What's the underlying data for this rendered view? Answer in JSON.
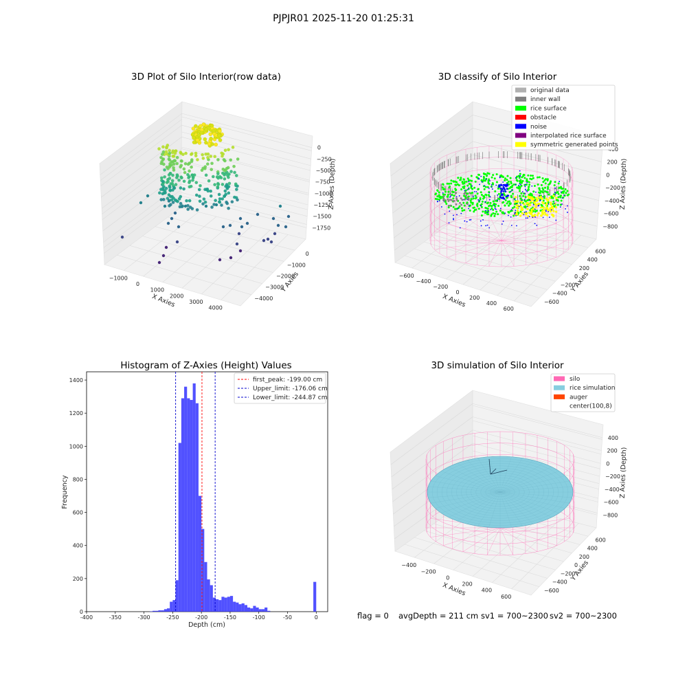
{
  "suptitle": "PJPJR01 2025-11-20 01:25:31",
  "colors": {
    "hist_bar": "#3333ff",
    "first_peak": "#ff0000",
    "limits": "#0000cc",
    "silo": "#ff69b4",
    "rice_sim": "#87cedf",
    "auger": "#ff4500",
    "rice_surface": "#00ff00",
    "noise": "#0000ff",
    "symmetric": "#ffff00",
    "inner_wall": "#808080",
    "original": "#b0b0b0",
    "obstacle": "#ff0000",
    "interpolated": "#800080"
  },
  "chart_data": [
    {
      "type": "scatter",
      "title": "3D Plot of Silo Interior(row data)",
      "xlabel": "X Axies",
      "ylabel": "Y Axies",
      "zlabel": "Z Axies (Depth)",
      "xticks": [
        "−1000",
        "0",
        "1000",
        "2000",
        "3000",
        "4000"
      ],
      "yticks": [
        "−4000",
        "−3000",
        "−2000",
        "−1000",
        "0"
      ],
      "zticks": [
        "0",
        "−250",
        "−500",
        "−750",
        "−1000",
        "−1250",
        "−1500",
        "−1750"
      ],
      "colormap": "viridis"
    },
    {
      "type": "scatter",
      "title": "3D classify of Silo Interior",
      "xlabel": "X Axies",
      "ylabel": "Y Axies",
      "zlabel": "Z Axies (Depth)",
      "xticks": [
        "−600",
        "−400",
        "−200",
        "0",
        "200",
        "400",
        "600"
      ],
      "yticks": [
        "−600",
        "−400",
        "−200",
        "0",
        "200",
        "400",
        "600"
      ],
      "zticks": [
        "400",
        "200",
        "0",
        "−200",
        "−400",
        "−600",
        "−800"
      ],
      "legend": [
        {
          "label": "original data",
          "color": "#b0b0b0"
        },
        {
          "label": "inner wall",
          "color": "#808080"
        },
        {
          "label": "rice surface",
          "color": "#00ff00"
        },
        {
          "label": "obstacle",
          "color": "#ff0000"
        },
        {
          "label": "noise",
          "color": "#0000ff"
        },
        {
          "label": "interpolated rice surface",
          "color": "#800080"
        },
        {
          "label": "symmetric generated points",
          "color": "#ffff00"
        }
      ]
    },
    {
      "type": "bar",
      "title": "Histogram of Z-Axies (Height) Values",
      "xlabel": "Depth (cm)",
      "ylabel": "Frequency",
      "xlim": [
        -400,
        20
      ],
      "ylim": [
        0,
        1450
      ],
      "bin_width": 5,
      "xticks": [
        -400,
        -350,
        -300,
        -250,
        -200,
        -150,
        -100,
        -50,
        0
      ],
      "yticks": [
        0,
        200,
        400,
        600,
        800,
        1000,
        1200,
        1400
      ],
      "bins": [
        {
          "x": -290,
          "v": 2
        },
        {
          "x": -285,
          "v": 5
        },
        {
          "x": -280,
          "v": 5
        },
        {
          "x": -275,
          "v": 8
        },
        {
          "x": -270,
          "v": 8
        },
        {
          "x": -265,
          "v": 15
        },
        {
          "x": -260,
          "v": 20
        },
        {
          "x": -255,
          "v": 60
        },
        {
          "x": -250,
          "v": 70
        },
        {
          "x": -245,
          "v": 190
        },
        {
          "x": -240,
          "v": 1020
        },
        {
          "x": -235,
          "v": 1290
        },
        {
          "x": -230,
          "v": 1360
        },
        {
          "x": -225,
          "v": 1290
        },
        {
          "x": -220,
          "v": 1280
        },
        {
          "x": -215,
          "v": 1380
        },
        {
          "x": -210,
          "v": 1260
        },
        {
          "x": -205,
          "v": 700
        },
        {
          "x": -200,
          "v": 500
        },
        {
          "x": -195,
          "v": 300
        },
        {
          "x": -190,
          "v": 195
        },
        {
          "x": -185,
          "v": 160
        },
        {
          "x": -180,
          "v": 85
        },
        {
          "x": -175,
          "v": 75
        },
        {
          "x": -170,
          "v": 70
        },
        {
          "x": -165,
          "v": 90
        },
        {
          "x": -160,
          "v": 85
        },
        {
          "x": -155,
          "v": 90
        },
        {
          "x": -150,
          "v": 95
        },
        {
          "x": -145,
          "v": 60
        },
        {
          "x": -140,
          "v": 55
        },
        {
          "x": -135,
          "v": 45
        },
        {
          "x": -130,
          "v": 50
        },
        {
          "x": -125,
          "v": 40
        },
        {
          "x": -120,
          "v": 25
        },
        {
          "x": -115,
          "v": 20
        },
        {
          "x": -110,
          "v": 35
        },
        {
          "x": -105,
          "v": 25
        },
        {
          "x": -100,
          "v": 15
        },
        {
          "x": -95,
          "v": 15
        },
        {
          "x": -90,
          "v": 25
        },
        {
          "x": -85,
          "v": 5
        },
        {
          "x": -5,
          "v": 180
        }
      ],
      "vlines": [
        {
          "label": "first_peak: -199.00 cm",
          "x": -199.0,
          "color": "#ff0000"
        },
        {
          "label": "Upper_limit: -176.06 cm",
          "x": -176.06,
          "color": "#0000cc"
        },
        {
          "label": "Lower_limit: -244.87 cm",
          "x": -244.87,
          "color": "#0000cc"
        }
      ]
    },
    {
      "type": "surface",
      "title": "3D simulation of Silo Interior",
      "xlabel": "X Axies",
      "ylabel": "Y Axies",
      "zlabel": "Z Axies (Depth)",
      "xticks": [
        "−400",
        "−200",
        "0",
        "200",
        "400",
        "600"
      ],
      "yticks": [
        "−600",
        "−400",
        "−200",
        "0",
        "200",
        "400",
        "600"
      ],
      "zticks": [
        "400",
        "200",
        "0",
        "−200",
        "−400",
        "−600",
        "−800"
      ],
      "legend": [
        {
          "label": "silo",
          "color": "#ff69b4"
        },
        {
          "label": "rice simulation",
          "color": "#87cedf"
        },
        {
          "label": "auger",
          "color": "#ff4500"
        },
        {
          "label": "center(100,8)",
          "color": "#ffffff"
        }
      ]
    }
  ],
  "footer": {
    "flag": "flag = 0",
    "avg": "avgDepth = 211 cm",
    "sv1": "sv1 = 700~2300",
    "sv2": "sv2 = 700~2300"
  }
}
